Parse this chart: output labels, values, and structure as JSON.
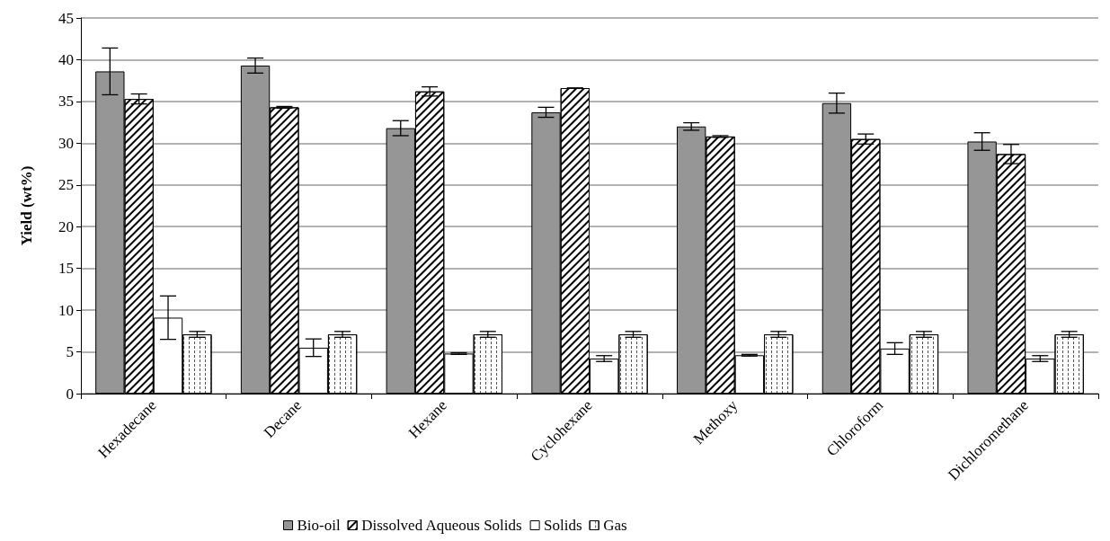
{
  "chart_data": {
    "type": "bar",
    "ylabel": "Yield (wt%)",
    "categories": [
      "Hexadecane",
      "Decane",
      "Hexane",
      "Cyclohexane",
      "Methoxy",
      "Chloroform",
      "Dichloromethane"
    ],
    "series": [
      {
        "name": "Bio-oil",
        "color": "#969696",
        "values": [
          38.6,
          39.3,
          31.8,
          33.7,
          32.0,
          34.8,
          30.2
        ],
        "errors": [
          2.8,
          0.9,
          0.9,
          0.6,
          0.45,
          1.2,
          1.05
        ]
      },
      {
        "name": "Dissolved Aqueous Solids",
        "color": "#ffffff",
        "values": [
          35.3,
          34.3,
          36.2,
          36.6,
          30.8,
          30.5,
          28.7
        ],
        "errors": [
          0.6,
          0.1,
          0.55,
          0,
          0.1,
          0.6,
          1.15
        ]
      },
      {
        "name": "Solids",
        "color": "#ffffff",
        "values": [
          9.1,
          5.5,
          4.8,
          4.2,
          4.6,
          5.4,
          4.2
        ],
        "errors": [
          2.6,
          1.05,
          0.1,
          0.35,
          0.1,
          0.7,
          0.35
        ]
      },
      {
        "name": "Gas",
        "color": "#ffffff",
        "values": [
          7.1,
          7.1,
          7.1,
          7.1,
          7.1,
          7.1,
          7.1
        ],
        "errors": [
          0.35,
          0.35,
          0.35,
          0.35,
          0.35,
          0.35,
          0.35
        ]
      }
    ],
    "ylim": [
      0,
      45
    ],
    "yticks": [
      0,
      5,
      10,
      15,
      20,
      25,
      30,
      35,
      40,
      45
    ],
    "grid": "y",
    "legend": "bottom"
  }
}
